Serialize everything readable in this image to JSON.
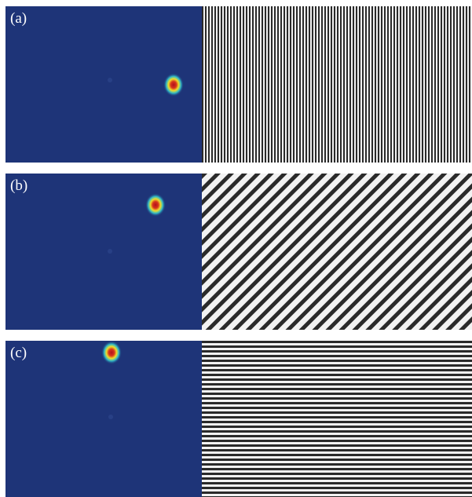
{
  "figure": {
    "panels": [
      {
        "id": "a",
        "label": "(a)",
        "fringe_orientation": "vertical",
        "fringe_angle_deg": 90
      },
      {
        "id": "b",
        "label": "(b)",
        "fringe_orientation": "diagonal",
        "fringe_angle_deg": 45
      },
      {
        "id": "c",
        "label": "(c)",
        "fringe_orientation": "horizontal",
        "fringe_angle_deg": 0
      }
    ],
    "colors": {
      "background": "#1e3478",
      "spot_core": "#b1121b",
      "spot_mid": "#f0df2a",
      "spot_outer": "#2fb8c8",
      "fringe_dark": "#2a2a2a",
      "fringe_light": "#f2f2f2",
      "label_text": "#ffffff"
    }
  }
}
